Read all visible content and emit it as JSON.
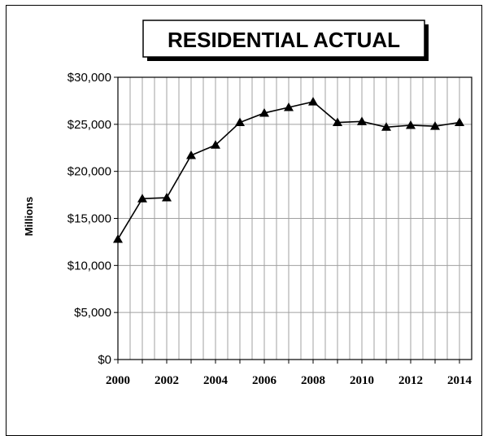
{
  "chart_data": {
    "type": "line",
    "title": "RESIDENTIAL ACTUAL",
    "xlabel": "",
    "ylabel": "Millions",
    "x": [
      2000,
      2001,
      2002,
      2003,
      2004,
      2005,
      2006,
      2007,
      2008,
      2009,
      2010,
      2011,
      2012,
      2013,
      2014
    ],
    "series": [
      {
        "values": [
          12800,
          17100,
          17200,
          21700,
          22800,
          25200,
          26200,
          26800,
          27400,
          25200,
          25300,
          24700,
          24900,
          24800,
          25200
        ],
        "marker": "triangle",
        "color": "#000000"
      }
    ],
    "x_tick_labels": [
      "2000",
      "2002",
      "2004",
      "2006",
      "2008",
      "2010",
      "2012",
      "2014"
    ],
    "y_tick_labels": [
      "$0",
      "$5,000",
      "$10,000",
      "$15,000",
      "$20,000",
      "$25,000",
      "$30,000"
    ],
    "y_ticks": [
      0,
      5000,
      10000,
      15000,
      20000,
      25000,
      30000
    ],
    "ylim": [
      0,
      30000
    ],
    "xlim": [
      2000,
      2014.5
    ],
    "grid": true,
    "plot_background": "#ffffff",
    "grid_color": "#a0a0a0"
  }
}
